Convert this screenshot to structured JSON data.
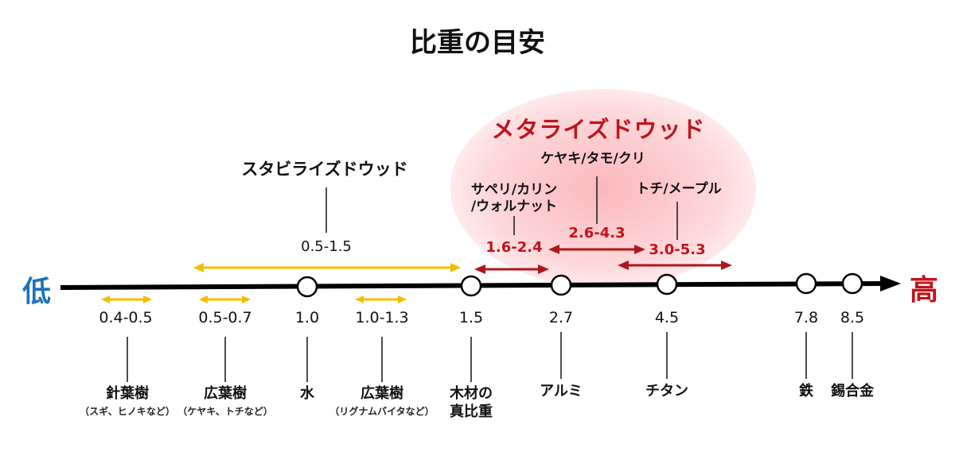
{
  "title": "比重の目安",
  "axis": {
    "low_label": "低",
    "high_label": "高",
    "points": [
      "1.0",
      "1.5",
      "2.7",
      "4.5",
      "7.8",
      "8.5"
    ]
  },
  "ticks": {
    "r1": "0.4-0.5",
    "r2": "0.5-0.7",
    "v1": "1.0",
    "r3": "1.0-1.3",
    "v2": "1.5",
    "v3": "2.7",
    "v4": "4.5",
    "v5": "7.8",
    "v6": "8.5"
  },
  "materials": {
    "softwood": "針葉樹",
    "softwood_note": "（スギ、ヒノキなど）",
    "hardwood1": "広葉樹",
    "hardwood1_note": "（ケヤキ、トチなど）",
    "water": "水",
    "hardwood2": "広葉樹",
    "hardwood2_note": "（リグナムバイタなど）",
    "wood_true_1": "木材の",
    "wood_true_2": "真比重",
    "aluminum": "アルミ",
    "titanium": "チタン",
    "iron": "鉄",
    "tin_alloy": "錫合金"
  },
  "stabilized": {
    "title": "スタビライズドウッド",
    "range": "0.5-1.5"
  },
  "metalized": {
    "title": "メタライズドウッド",
    "groups": [
      {
        "woods_1": "サペリ/カリン",
        "woods_2": "/ウォルナット",
        "range": "1.6-2.4"
      },
      {
        "woods_1": "ケヤキ/タモ/クリ",
        "range": "2.6-4.3"
      },
      {
        "woods_1": "トチ/メープル",
        "range": "3.0-5.3"
      }
    ]
  },
  "colors": {
    "axis": "#000000",
    "stabilized_arrow": "#f5bd00",
    "metalized_arrow": "#b0151d",
    "low": "#1c73b9",
    "high": "#c0141c",
    "glow": "#f98c92"
  }
}
